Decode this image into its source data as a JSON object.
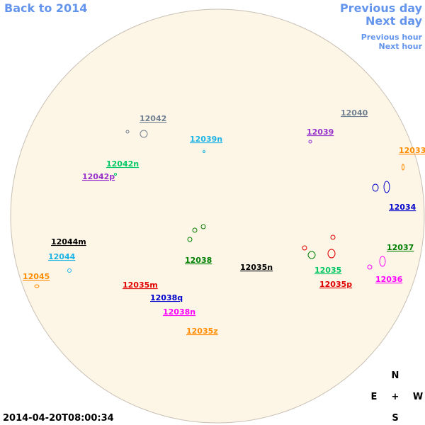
{
  "navigation": {
    "back": "Back to 2014",
    "previous_day": "Previous day",
    "next_day": "Next day",
    "previous_hour": "Previous hour",
    "next_hour": "Next hour"
  },
  "regions": [
    {
      "label": "12042",
      "color": "#708090"
    },
    {
      "label": "12040",
      "color": "#708090"
    },
    {
      "label": "12039n",
      "color": "#1eb4e6"
    },
    {
      "label": "12039",
      "color": "#9932cc"
    },
    {
      "label": "12033",
      "color": "#ff8c00"
    },
    {
      "label": "12042n",
      "color": "#00c864"
    },
    {
      "label": "12042p",
      "color": "#9932cc"
    },
    {
      "label": "12034",
      "color": "#0000cd"
    },
    {
      "label": "12044m",
      "color": "#000000"
    },
    {
      "label": "12038",
      "color": "#008000"
    },
    {
      "label": "12037",
      "color": "#008000"
    },
    {
      "label": "12044",
      "color": "#1eb4e6"
    },
    {
      "label": "12035n",
      "color": "#000000"
    },
    {
      "label": "12035",
      "color": "#00c864"
    },
    {
      "label": "12036",
      "color": "#ff00ff"
    },
    {
      "label": "12045",
      "color": "#ff8c00"
    },
    {
      "label": "12035m",
      "color": "#e00000"
    },
    {
      "label": "12035p",
      "color": "#e00000"
    },
    {
      "label": "12038q",
      "color": "#0000cd"
    },
    {
      "label": "12038n",
      "color": "#ff00ff"
    },
    {
      "label": "12035z",
      "color": "#ff8c00"
    }
  ],
  "compass": {
    "north": "N",
    "east": "E",
    "center": "+",
    "west": "W",
    "south": "S"
  },
  "timestamp": "2014-04-20T08:00:34"
}
